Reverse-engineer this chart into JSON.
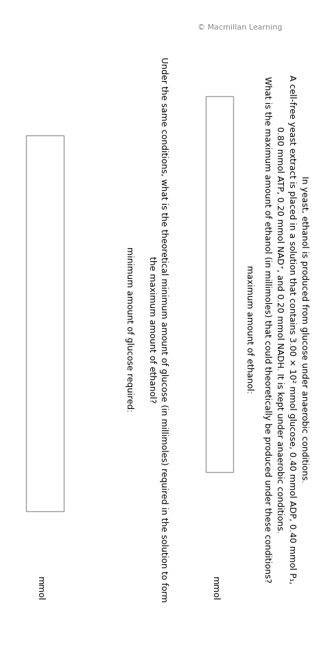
{
  "background_color": "#ffffff",
  "watermark": "© Macmillan Learning",
  "paragraph1": "In yeast, ethanol is produced from glucose under anaerobic conditions.",
  "paragraph2a": "A cell-free yeast extract is placed in a solution that contains 3.00 × 10² mmol glucose, 0.40 mmol ADP, 0.40 mmol P₁,",
  "paragraph2b": "0.80 mmol ATP, 0.20 mmol NAD⁺, and 0.20 mmol NADH. It is kept under anaerobic conditions.",
  "question1": "What is the maximum amount of ethanol (in millimoles) that could theoretically be produced under these conditions?",
  "label1": "maximum amount of ethanol:",
  "unit1": "mmol",
  "paragraph3a": "Under the same conditions, what is the theoretical minimum amount of glucose (in millimoles) required in the solution to form",
  "paragraph3b": "the maximum amount of ethanol?",
  "label2": "minimum amount of glucose required:",
  "unit2": "mmol",
  "font_size_main": 9.0,
  "font_size_watermark": 8.0,
  "text_color": "#000000",
  "watermark_color": "#888888",
  "box_facecolor": "#ffffff",
  "box_edgecolor": "#999999",
  "rotation": 270
}
